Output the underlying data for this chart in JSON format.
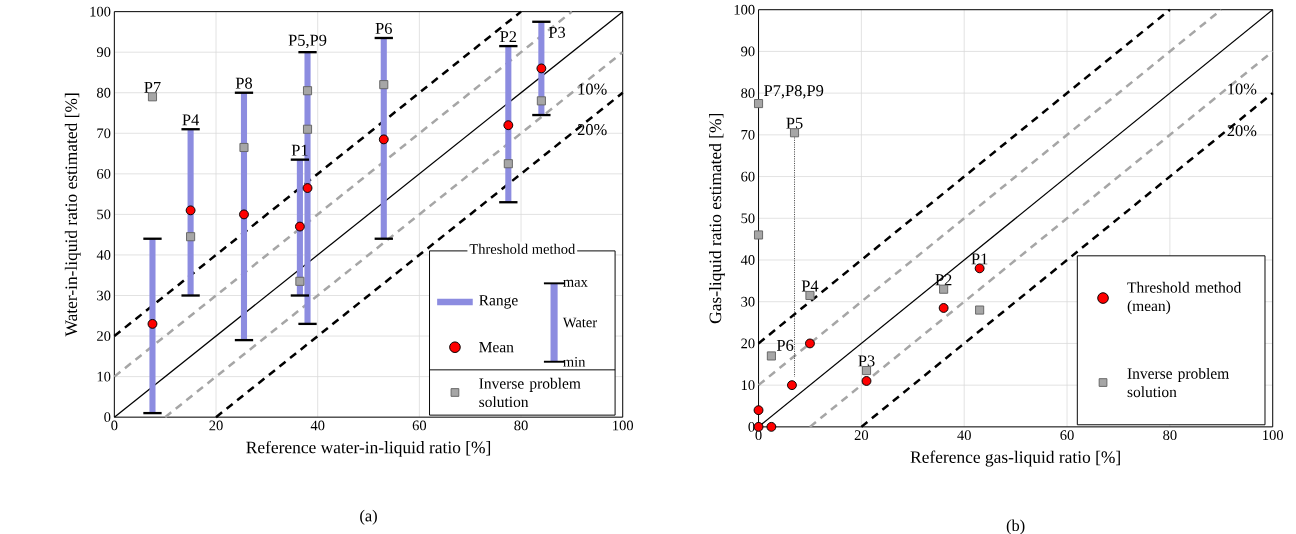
{
  "chart_data": [
    {
      "type": "scatter",
      "xlabel": "Reference water-in-liquid ratio [%]",
      "ylabel": "Water-in-liquid ratio estimated [%]",
      "xlim": [
        0,
        100
      ],
      "ylim": [
        0,
        100
      ],
      "xticks": [
        0,
        20,
        40,
        60,
        80,
        100
      ],
      "yticks": [
        0,
        10,
        20,
        30,
        40,
        50,
        60,
        70,
        80,
        90,
        100
      ],
      "grid": true,
      "legend": "bottom right",
      "legend_title": "Threshold method",
      "series": [
        {
          "type": "line",
          "x": [
            0,
            100
          ],
          "values": [
            0,
            100
          ],
          "color": "#000000",
          "line_style": "solid"
        },
        {
          "type": "line",
          "x": [
            0,
            80
          ],
          "values": [
            20,
            100
          ],
          "color": "#000000",
          "line_style": "dashed"
        },
        {
          "type": "line",
          "x": [
            20,
            100
          ],
          "values": [
            0,
            80
          ],
          "color": "#000000",
          "line_style": "dashed"
        },
        {
          "type": "line",
          "x": [
            0,
            90
          ],
          "values": [
            10,
            100
          ],
          "color": "#a6a6a6",
          "line_style": "dashed"
        },
        {
          "type": "line",
          "x": [
            10,
            100
          ],
          "values": [
            0,
            90
          ],
          "color": "#a6a6a6",
          "line_style": "dashed"
        },
        {
          "type": "bar",
          "name": "Range",
          "color": "#8c8ce0",
          "x": [
            7.5,
            15,
            25.5,
            36.5,
            38,
            53,
            77.5,
            84
          ],
          "base": [
            1,
            30,
            19,
            30,
            23,
            44,
            53,
            74.5
          ],
          "values": [
            43,
            41,
            61,
            33.5,
            67,
            49.5,
            38.5,
            23
          ]
        },
        {
          "name": "Mean",
          "color": "#ff0000",
          "marker": "circle",
          "x": [
            7.5,
            15,
            25.5,
            36.5,
            38,
            53,
            77.5,
            84
          ],
          "values": [
            23,
            51,
            50,
            47,
            56.5,
            68.5,
            72,
            86
          ]
        },
        {
          "name": "Inverse problem solution",
          "color": "#a6a6a6",
          "marker": "square",
          "x": [
            7.5,
            15,
            25.5,
            36.5,
            38,
            38,
            53,
            77.5,
            84
          ],
          "values": [
            79,
            44.5,
            66.5,
            33.5,
            71,
            80.5,
            82,
            62.5,
            78
          ]
        }
      ],
      "annotations": [
        {
          "text": "P7",
          "x": 7.5,
          "y": 79
        },
        {
          "text": "P4",
          "x": 15,
          "y": 71
        },
        {
          "text": "P8",
          "x": 25.5,
          "y": 80
        },
        {
          "text": "P1",
          "x": 36.5,
          "y": 63.5
        },
        {
          "text": "P5,P9",
          "x": 38,
          "y": 90
        },
        {
          "text": "P6",
          "x": 53,
          "y": 93.5
        },
        {
          "text": "P2",
          "x": 77.5,
          "y": 91.5
        },
        {
          "text": "P3",
          "x": 84,
          "y": 97.5
        },
        {
          "text": "10%",
          "x": 94,
          "y": 84
        },
        {
          "text": "20%",
          "x": 94,
          "y": 74
        },
        "max",
        "Water",
        "min",
        "(a)"
      ]
    },
    {
      "type": "scatter",
      "xlabel": "Reference gas-liquid ratio [%]",
      "ylabel": "Gas-liquid ratio estimated [%]",
      "xlim": [
        0,
        100
      ],
      "ylim": [
        0,
        100
      ],
      "xticks": [
        0,
        20,
        40,
        60,
        80,
        100
      ],
      "yticks": [
        0,
        10,
        20,
        30,
        40,
        50,
        60,
        70,
        80,
        90,
        100
      ],
      "grid": true,
      "legend": "bottom right",
      "series": [
        {
          "type": "line",
          "x": [
            0,
            100
          ],
          "values": [
            0,
            100
          ],
          "color": "#000000",
          "line_style": "solid"
        },
        {
          "type": "line",
          "x": [
            0,
            80
          ],
          "values": [
            20,
            100
          ],
          "color": "#000000",
          "line_style": "dashed"
        },
        {
          "type": "line",
          "x": [
            20,
            100
          ],
          "values": [
            0,
            80
          ],
          "color": "#000000",
          "line_style": "dashed"
        },
        {
          "type": "line",
          "x": [
            0,
            90
          ],
          "values": [
            10,
            100
          ],
          "color": "#a6a6a6",
          "line_style": "dashed"
        },
        {
          "type": "line",
          "x": [
            10,
            100
          ],
          "values": [
            0,
            90
          ],
          "color": "#a6a6a6",
          "line_style": "dashed"
        },
        {
          "type": "line",
          "x": [
            7,
            7
          ],
          "values": [
            70.5,
            12
          ],
          "color": "#000000",
          "line_style": "dotted"
        },
        {
          "name": "Threshold method (mean)",
          "color": "#ff0000",
          "marker": "circle",
          "x": [
            0,
            2.5,
            0,
            6.5,
            10,
            21,
            36,
            43
          ],
          "values": [
            0,
            0,
            4,
            10,
            20,
            11,
            28.5,
            38
          ]
        },
        {
          "name": "Inverse problem solution",
          "color": "#a6a6a6",
          "marker": "square",
          "x": [
            0,
            0,
            7,
            10,
            2.5,
            21,
            36,
            43
          ],
          "values": [
            77.5,
            46,
            70.5,
            31.5,
            17,
            13.5,
            33,
            28
          ]
        }
      ],
      "annotations": [
        {
          "text": "P7,P8,P9",
          "x": 0,
          "y": 77.5
        },
        {
          "text": "P5",
          "x": 7,
          "y": 70.5
        },
        {
          "text": "P4",
          "x": 10,
          "y": 31.5
        },
        {
          "text": "P6",
          "x": 2.5,
          "y": 17
        },
        {
          "text": "P3",
          "x": 21,
          "y": 13.5
        },
        {
          "text": "P2",
          "x": 36,
          "y": 33
        },
        {
          "text": "P1",
          "x": 43,
          "y": 38
        },
        {
          "text": "10%",
          "x": 94,
          "y": 84
        },
        {
          "text": "20%",
          "x": 94,
          "y": 74
        },
        "(b)"
      ]
    }
  ]
}
